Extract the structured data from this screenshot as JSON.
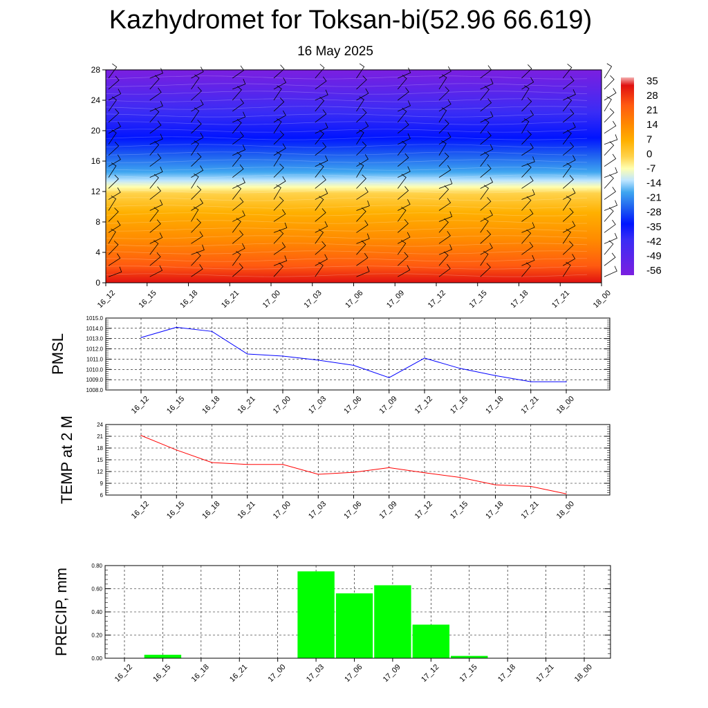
{
  "page": {
    "title": "Kazhydromet for Toksan-bi(52.96 66.619)",
    "date": "16 May 2025"
  },
  "colors": {
    "pmsl_line": "#0000ff",
    "temp_line": "#ff0000",
    "precip_bar": "#00ff00",
    "colormap": [
      "#7b1fe0",
      "#3a2cf5",
      "#0014ff",
      "#1e5ff0",
      "#3fa6f0",
      "#bfe6ff",
      "#ffffb0",
      "#ffd24a",
      "#ffb000",
      "#ff8a00",
      "#ff5a10",
      "#e01010"
    ]
  },
  "chart_data": [
    {
      "type": "heatmap",
      "name": "vertical cross-section",
      "categories": [
        "16_12",
        "16_15",
        "16_18",
        "16_21",
        "17_00",
        "17_03",
        "17_06",
        "17_09",
        "17_12",
        "17_15",
        "17_18",
        "17_21",
        "18_00"
      ],
      "yticks": [
        0,
        4,
        8,
        12,
        16,
        20,
        24,
        28
      ],
      "ylim": [
        0,
        28
      ],
      "colorbar": {
        "labels": [
          "35",
          "28",
          "21",
          "14",
          "7",
          "0",
          "-7",
          "-14",
          "-21",
          "-28",
          "-35",
          "-42",
          "-49",
          "-56"
        ],
        "range": [
          -63,
          35
        ]
      },
      "overlay": "wind barbs"
    },
    {
      "type": "line",
      "ylabel": "PMSL",
      "categories": [
        "16_12",
        "16_15",
        "16_18",
        "16_21",
        "17_00",
        "17_03",
        "17_06",
        "17_09",
        "17_12",
        "17_15",
        "17_18",
        "17_21",
        "18_00"
      ],
      "values": [
        1013.1,
        1014.1,
        1013.7,
        1011.5,
        1011.3,
        1010.9,
        1010.4,
        1009.2,
        1011.1,
        1010.1,
        1009.4,
        1008.8,
        1008.8
      ],
      "yticks": [
        "1008.0",
        "1009.0",
        "1010.0",
        "1011.0",
        "1012.0",
        "1013.0",
        "1014.0",
        "1015.0"
      ],
      "ylim": [
        1008,
        1015
      ]
    },
    {
      "type": "line",
      "ylabel": "TEMP at 2 M",
      "categories": [
        "16_12",
        "16_15",
        "16_18",
        "16_21",
        "17_00",
        "17_03",
        "17_06",
        "17_09",
        "17_12",
        "17_15",
        "17_18",
        "17_21",
        "18_00"
      ],
      "values": [
        21.2,
        17.5,
        14.3,
        13.8,
        13.8,
        11.3,
        11.8,
        13.0,
        11.7,
        10.5,
        8.6,
        8.2,
        6.3
      ],
      "yticks": [
        "6",
        "9",
        "12",
        "15",
        "18",
        "21",
        "24"
      ],
      "ylim": [
        6,
        24
      ]
    },
    {
      "type": "bar",
      "ylabel": "PRECIP, mm",
      "categories": [
        "16_12",
        "16_15",
        "16_18",
        "16_21",
        "17_00",
        "17_03",
        "17_06",
        "17_09",
        "17_12",
        "17_15",
        "17_18",
        "17_21",
        "18_00"
      ],
      "values": [
        0,
        0.03,
        0,
        0,
        0,
        0.75,
        0.56,
        0.63,
        0.29,
        0.02,
        0,
        0,
        0
      ],
      "yticks": [
        "0.00",
        "0.20",
        "0.40",
        "0.60",
        "0.80"
      ],
      "ylim": [
        0,
        0.8
      ]
    }
  ]
}
